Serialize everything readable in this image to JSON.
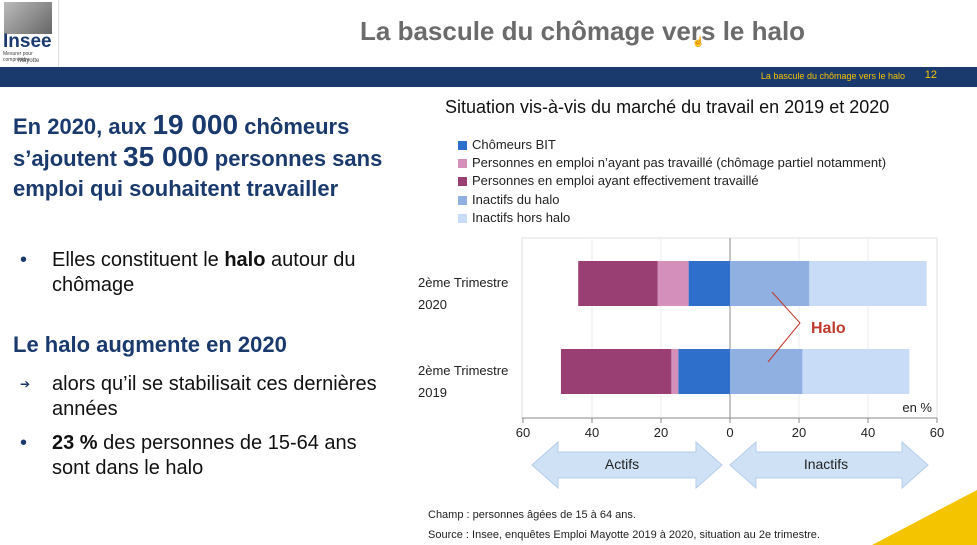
{
  "logo": {
    "word": "Insee",
    "tagline": "Mesurer pour comprendre",
    "sub": "Mayotte"
  },
  "slide": {
    "title": "La bascule du chômage vers le halo",
    "band_text": "La bascule du chômage vers le halo",
    "page_number": "12"
  },
  "left": {
    "heading1_a": "En 2020, aux",
    "heading1_b": "19 000",
    "heading1_c": "chômeurs s’ajoutent",
    "heading1_d": "35 000",
    "heading1_e": "personnes sans emploi qui souhaitent travailler",
    "bullet1_a": "Elles constituent le",
    "bullet1_b": "halo",
    "bullet1_c": "autour du chômage",
    "heading2": "Le halo augmente en 2020",
    "bullet2": "alors qu’il se stabilisait ces dernières années",
    "bullet3_a": "23 %",
    "bullet3_b": "des personnes de 15-64 ans sont dans le halo",
    "marker_dot": "•",
    "marker_arrow": "➔"
  },
  "chart_data": {
    "type": "bar",
    "orientation": "horizontal-stacked-diverging",
    "title": "Situation vis-à-vis du marché du travail en 2019 et 2020",
    "unit_label": "en %",
    "categories": [
      "2ème Trimestre 2020",
      "2ème Trimestre 2019"
    ],
    "series": [
      {
        "name": "Chômeurs BIT",
        "side": "left",
        "color": "#2e6fcc",
        "values": [
          12,
          15
        ]
      },
      {
        "name": "Personnes en emploi n’ayant pas travaillé (chômage partiel notamment)",
        "side": "left",
        "color": "#d48fbb",
        "values": [
          9,
          2
        ]
      },
      {
        "name": "Personnes en emploi ayant effectivement travaillé",
        "side": "left",
        "color": "#9a3f74",
        "values": [
          23,
          32
        ]
      },
      {
        "name": "Inactifs du halo",
        "side": "right",
        "color": "#8fb0e0",
        "values": [
          23,
          21
        ]
      },
      {
        "name": "Inactifs hors halo",
        "side": "right",
        "color": "#c9dcf7",
        "values": [
          34,
          31
        ]
      }
    ],
    "xticks": [
      "60",
      "40",
      "20",
      "0",
      "20",
      "40",
      "60"
    ],
    "xlim": [
      -60,
      60
    ],
    "annotation": "Halo",
    "arrow_left": "Actifs",
    "arrow_right": "Inactifs",
    "legend": "top"
  },
  "notes": {
    "champ": "Champ : personnes âgées de 15 à 64 ans.",
    "source": "Source : Insee, enquêtes Emploi Mayotte 2019 à 2020, situation au 2e trimestre."
  },
  "colors": {
    "brand": "#1a3a6e",
    "accent": "#f5c400",
    "halo_label": "#c0392b"
  }
}
